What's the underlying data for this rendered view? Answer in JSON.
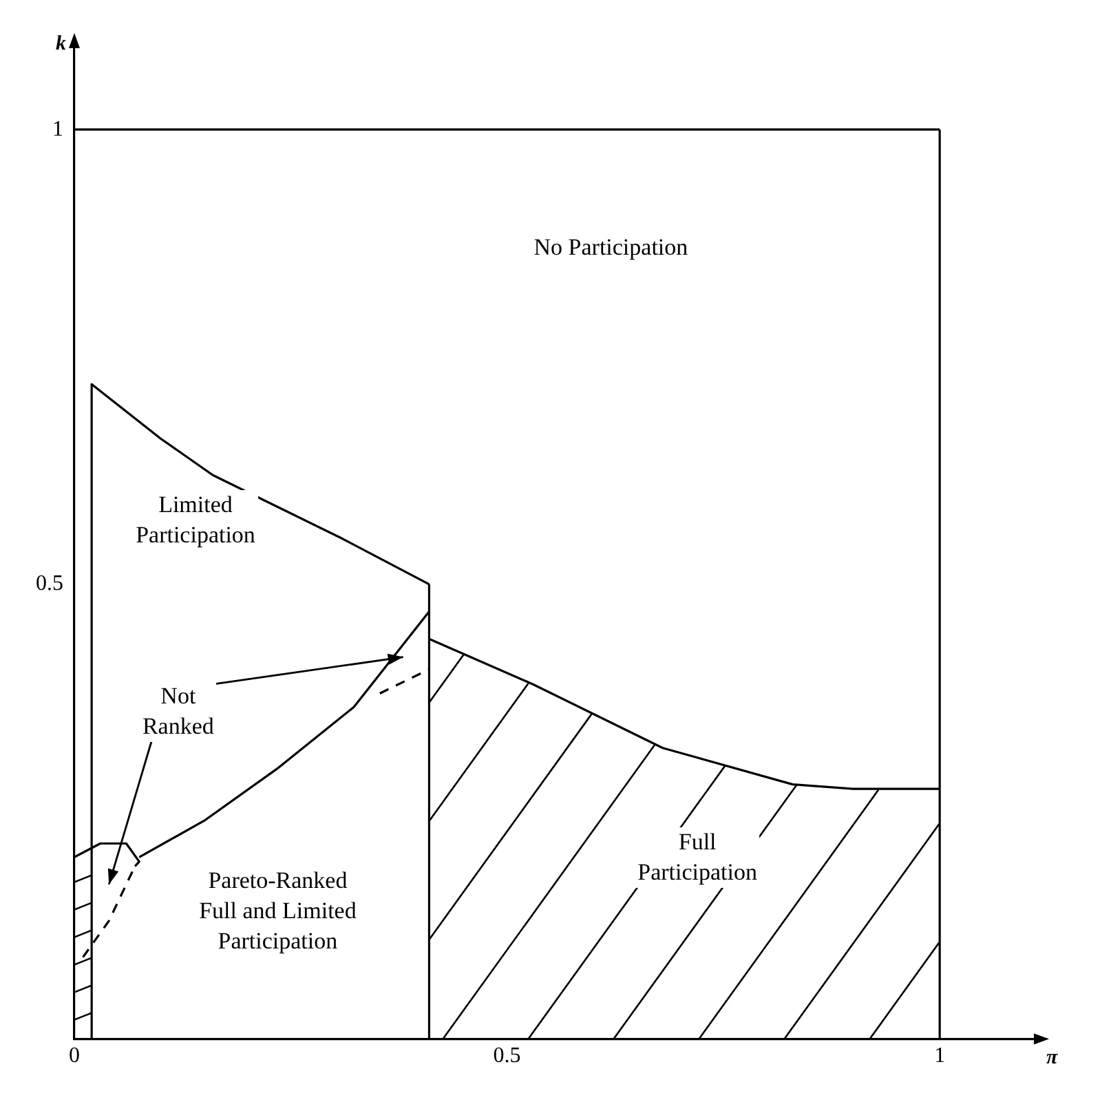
{
  "chart_data": {
    "type": "line",
    "xlabel": "π",
    "ylabel": "k",
    "xlim": [
      0,
      1.12
    ],
    "ylim": [
      0,
      1.1
    ],
    "xticks": [
      0,
      0.5,
      1
    ],
    "yticks": [
      0.5,
      1
    ],
    "grid": false,
    "legend": false,
    "marker": "none",
    "series": [
      {
        "color": "#000000",
        "line_style": "solid",
        "x": [
          0,
          1
        ],
        "values": [
          1,
          1
        ]
      },
      {
        "color": "#000000",
        "line_style": "solid",
        "x": [
          1,
          1
        ],
        "values": [
          0,
          1
        ]
      },
      {
        "color": "#000000",
        "line_style": "solid",
        "x": [
          0.02,
          0.02,
          0.1,
          0.16,
          0.31,
          0.41
        ],
        "values": [
          0,
          0.72,
          0.66,
          0.62,
          0.55,
          0.5
        ]
      },
      {
        "color": "#000000",
        "line_style": "solid",
        "x": [
          0.41,
          0.41
        ],
        "values": [
          0,
          0.5
        ]
      },
      {
        "color": "#000000",
        "line_style": "solid",
        "x": [
          0.41,
          0.53,
          0.68,
          0.83,
          0.9,
          1
        ],
        "values": [
          0.44,
          0.39,
          0.32,
          0.28,
          0.275,
          0.275
        ]
      },
      {
        "color": "#000000",
        "line_style": "solid",
        "x": [
          0,
          0.03,
          0.06,
          0.075,
          0.07
        ],
        "values": [
          0.2,
          0.215,
          0.215,
          0.195,
          0.19
        ]
      },
      {
        "color": "#000000",
        "line_style": "solid",
        "x": [
          0.075,
          0.15,
          0.234,
          0.323,
          0.41
        ],
        "values": [
          0.2,
          0.24,
          0.297,
          0.365,
          0.47
        ]
      },
      {
        "color": "#000000",
        "line_style": "dashed",
        "x": [
          0.01,
          0.04,
          0.07
        ],
        "values": [
          0.09,
          0.13,
          0.19
        ]
      },
      {
        "color": "#000000",
        "line_style": "dashed",
        "x": [
          0.353,
          0.409
        ],
        "values": [
          0.38,
          0.406
        ]
      }
    ],
    "annotations": [
      "No Participation",
      "Limited\nParticipation",
      "Not\nRanked",
      "Pareto-Ranked\nFull and Limited\nParticipation",
      "Full\nParticipation"
    ]
  }
}
